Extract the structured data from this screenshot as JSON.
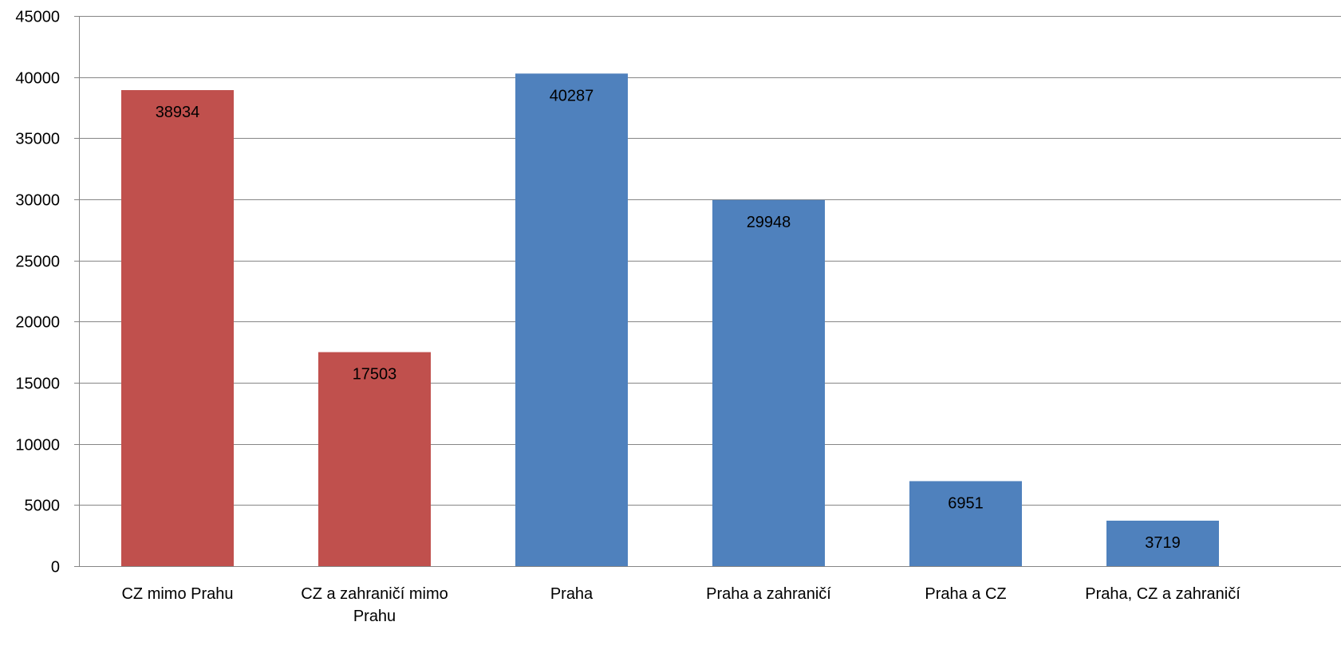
{
  "chart_data": {
    "type": "bar",
    "title": "",
    "xlabel": "",
    "ylabel": "",
    "categories": [
      "CZ mimo Prahu",
      "CZ a zahraničí mimo Prahu",
      "Praha",
      "Praha a zahraničí",
      "Praha a CZ",
      "Praha, CZ a zahraničí"
    ],
    "category_lines": [
      [
        "CZ mimo Prahu"
      ],
      [
        "CZ a zahraničí mimo",
        "Prahu"
      ],
      [
        "Praha"
      ],
      [
        "Praha a zahraničí"
      ],
      [
        "Praha a CZ"
      ],
      [
        "Praha, CZ a zahraničí"
      ]
    ],
    "values": [
      38934,
      17503,
      40287,
      29948,
      6951,
      3719
    ],
    "data_labels": [
      "38934",
      "17503",
      "40287",
      "29948",
      "6951",
      "3719"
    ],
    "bar_colors": [
      "#c0504d",
      "#c0504d",
      "#4f81bd",
      "#4f81bd",
      "#4f81bd",
      "#4f81bd"
    ],
    "ylim": [
      0,
      45000
    ],
    "yticks": [
      0,
      5000,
      10000,
      15000,
      20000,
      25000,
      30000,
      35000,
      40000,
      45000
    ],
    "ytick_labels": [
      "0",
      "5000",
      "10000",
      "15000",
      "20000",
      "25000",
      "30000",
      "35000",
      "40000",
      "45000"
    ],
    "grid": true,
    "legend": "none"
  }
}
